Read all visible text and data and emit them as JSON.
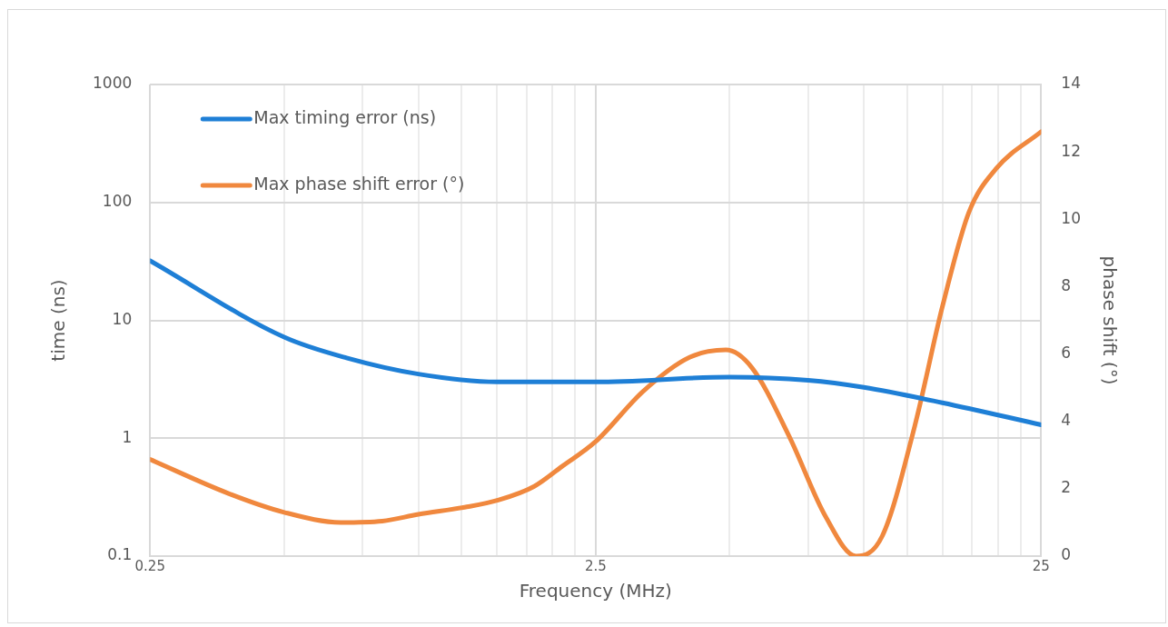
{
  "chart_data": {
    "type": "line",
    "xlabel": "Frequency (MHz)",
    "ylabel": "time (ns)",
    "y2label": "phase shift (°)",
    "log": "xy",
    "grid": true,
    "legend": "top left",
    "marker": "none",
    "line_style": "solid",
    "xlim": [
      0.25,
      25
    ],
    "xticks": [
      0.25,
      {
        "value": 0.5,
        "label": null
      },
      {
        "value": 0.75,
        "label": null
      },
      {
        "value": 1,
        "label": null
      },
      {
        "value": 1.25,
        "label": null
      },
      {
        "value": 1.5,
        "label": null
      },
      {
        "value": 1.75,
        "label": null
      },
      {
        "value": 2,
        "label": null
      },
      {
        "value": 2.25,
        "label": null
      },
      2.5,
      {
        "value": 5,
        "label": null
      },
      {
        "value": 7.5,
        "label": null
      },
      {
        "value": 10,
        "label": null
      },
      {
        "value": 12.5,
        "label": null
      },
      {
        "value": 15,
        "label": null
      },
      {
        "value": 17.5,
        "label": null
      },
      {
        "value": 20,
        "label": null
      },
      {
        "value": 22.5,
        "label": null
      },
      25
    ],
    "ylim": [
      0.1,
      1000
    ],
    "yticks": [
      0.1,
      1,
      10,
      100,
      1000
    ],
    "y2lim": [
      0,
      14
    ],
    "y2ticks": [
      0,
      2,
      4,
      6,
      8,
      10,
      12,
      14
    ],
    "series": [
      {
        "name": "Max timing error (ns)",
        "color": "#1e7fd6",
        "x": [
          0.25,
          0.5,
          0.69,
          1,
          1.5,
          2.5,
          5,
          7.5,
          10,
          15,
          25
        ],
        "values": [
          32,
          7.2,
          4.8,
          3.5,
          3.0,
          3.0,
          3.3,
          3.1,
          2.7,
          2.0,
          1.3
        ]
      },
      {
        "name": "Max phase shift error (°)",
        "color": "#f0883e",
        "axis": "y2",
        "x": [
          0.25,
          0.375,
          0.5,
          0.67,
          0.83,
          1,
          1.27,
          1.51,
          1.82,
          2.1,
          2.5,
          3.2,
          4.06,
          4.9,
          5.6,
          6.8,
          8.2,
          9.6,
          11,
          13,
          15,
          17.2,
          19.8,
          25
        ],
        "values": [
          2.87,
          1.86,
          1.3,
          1.0,
          1.04,
          1.24,
          1.45,
          1.66,
          2.07,
          2.66,
          3.4,
          4.9,
          5.9,
          6.12,
          5.6,
          3.55,
          1.18,
          0,
          0.6,
          3.85,
          7.4,
          10.2,
          11.5,
          12.6
        ]
      }
    ]
  }
}
